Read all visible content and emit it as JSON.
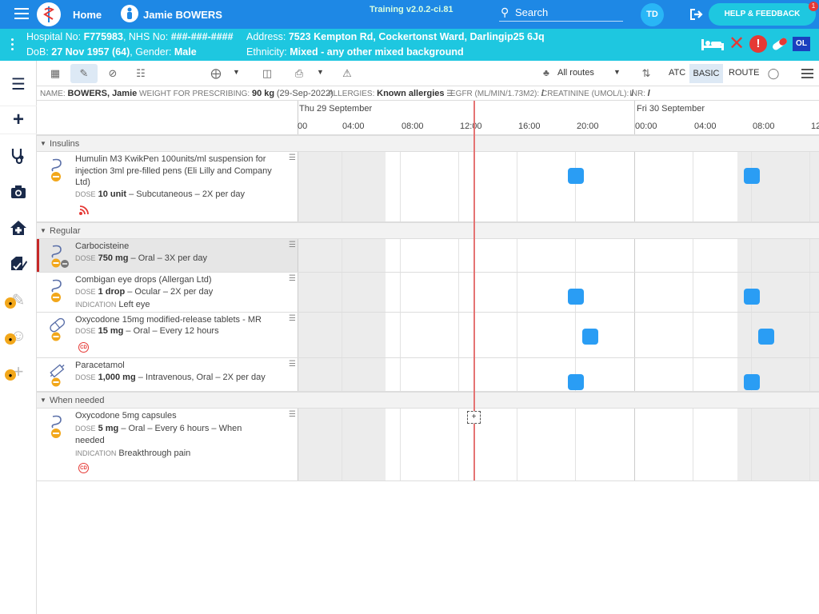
{
  "topbar": {
    "home_label": "Home",
    "patient_name": "Jamie BOWERS",
    "training_label": "Training v2.0.2-ci.81",
    "search_label": "Search",
    "user_initials": "TD",
    "help_label": "HELP & FEEDBACK",
    "help_badge": "1"
  },
  "banner": {
    "hospital_label": "Hospital No:",
    "hospital_no": "F775983",
    "nhs_label": "NHS No:",
    "nhs_no": "###-###-####",
    "dob_label": "DoB:",
    "dob": "27 Nov 1957 (64)",
    "gender_label": "Gender:",
    "gender": "Male",
    "address_label": "Address:",
    "address": "7523 Kempton Rd, Cockertonst Ward, Darlingip25 6Jq",
    "ethnicity_label": "Ethnicity:",
    "ethnicity": "Mixed - any other mixed background",
    "ol_label": "OL"
  },
  "toolbar": {
    "routes_label": "All routes",
    "atc_label": "ATC",
    "basic_label": "BASIC",
    "route_label": "ROUTE"
  },
  "patient_info": {
    "name_key": "NAME:",
    "name_val": "BOWERS, Jamie",
    "weight_key": "WEIGHT FOR PRESCRIBING:",
    "weight_val": "90 kg",
    "weight_date": "(29-Sep-2022)",
    "allergies_key": "ALLERGIES:",
    "allergies_val": "Known allergies",
    "egfr_key": "EGFR (ML/MIN/1.73M2):",
    "egfr_val": "/",
    "creat_key": "CREATININE (UMOL/L):",
    "creat_val": "/",
    "inr_key": "INR:",
    "inr_val": "/"
  },
  "timeline": {
    "day1": "Thu 29 September",
    "day2": "Fri 30 September",
    "ticks": [
      "00",
      "04:00",
      "08:00",
      "12:00",
      "16:00",
      "20:00",
      "00:00",
      "04:00",
      "08:00",
      "12"
    ],
    "now_marker": "+"
  },
  "sections": {
    "insulins": "Insulins",
    "regular": "Regular",
    "when_needed": "When needed"
  },
  "labels": {
    "dose": "DOSE",
    "indication": "INDICATION",
    "cd": "CD"
  },
  "meds": {
    "humulin": {
      "name": "Humulin M3 KwikPen 100units/ml suspension for injection 3ml pre-filled pens (Eli Lilly and Company Ltd)",
      "dose": "10 unit",
      "detail": " – Subcutaneous – 2X per day"
    },
    "carbocisteine": {
      "name": "Carbocisteine",
      "dose": "750 mg",
      "detail": " – Oral – 3X per day"
    },
    "combigan": {
      "name": "Combigan eye drops (Allergan Ltd)",
      "dose": "1 drop",
      "detail": " – Ocular – 2X per day",
      "indication": "Left eye"
    },
    "oxy15": {
      "name": "Oxycodone 15mg modified-release tablets - MR",
      "dose": "15 mg",
      "detail": " – Oral – Every 12 hours"
    },
    "paracetamol": {
      "name": "Paracetamol",
      "dose": "1,000 mg",
      "detail": " – Intravenous, Oral – 2X per day"
    },
    "oxy5": {
      "name": "Oxycodone 5mg capsules",
      "dose": "5 mg",
      "detail": " – Oral – Every 6 hours – When needed",
      "indication": "Breakthrough pain"
    }
  },
  "colors": {
    "topbar": "#1e88e5",
    "banner": "#1ec7e0",
    "dose_square": "#2a9df4",
    "now_line": "#e57373",
    "alert_red": "#e53935"
  }
}
